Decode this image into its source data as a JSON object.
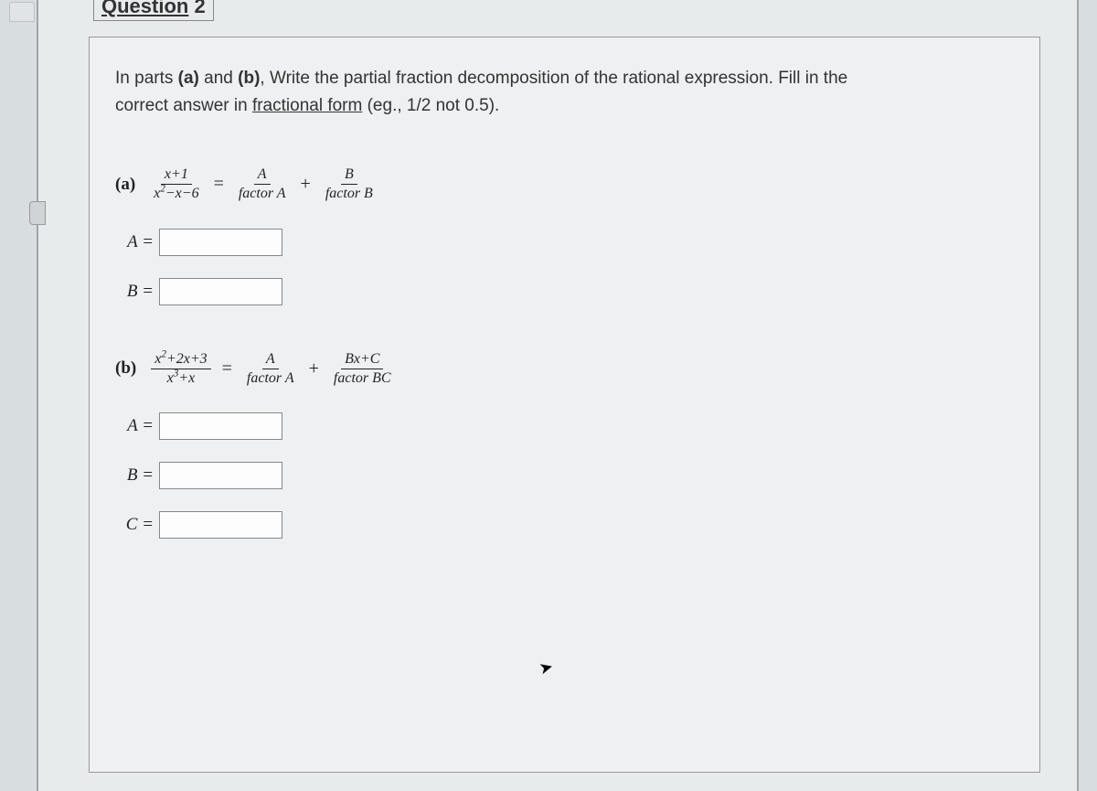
{
  "header": {
    "title_word": "Question",
    "title_num": "2"
  },
  "instructions": {
    "line1_prefix": "In parts ",
    "bold_a": "(a)",
    "mid1": " and ",
    "bold_b": "(b)",
    "mid2": ", Write the partial fraction decomposition of the rational expression. Fill in the",
    "line2_prefix": "correct answer in ",
    "underlined": "fractional form",
    "line2_suffix": " (eg., 1/2 not 0.5)."
  },
  "part_a": {
    "label": "(a)",
    "lhs_num": "x+1",
    "lhs_den": "x²−x−6",
    "term1_num": "A",
    "term1_den": "factor A",
    "term2_num": "B",
    "term2_den": "factor B",
    "inputs": {
      "A_label": "A =",
      "A_value": "",
      "B_label": "B =",
      "B_value": ""
    }
  },
  "part_b": {
    "label": "(b)",
    "lhs_num": "x²+2x+3",
    "lhs_den": "x³+x",
    "term1_num": "A",
    "term1_den": "factor A",
    "term2_num": "Bx+C",
    "term2_den": "factor BC",
    "inputs": {
      "A_label": "A =",
      "A_value": "",
      "B_label": "B =",
      "B_value": "",
      "C_label": "C =",
      "C_value": ""
    }
  },
  "symbols": {
    "equals": "=",
    "plus": "+"
  },
  "colors": {
    "page_bg": "#e8ebec",
    "body_bg": "#d8dde0",
    "border": "#999",
    "text": "#333"
  }
}
